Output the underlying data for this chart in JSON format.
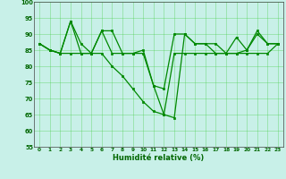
{
  "line1_x": [
    0,
    1,
    2,
    3,
    4,
    5,
    6,
    7,
    8,
    9,
    10,
    11,
    12,
    13,
    14,
    15,
    16,
    17,
    18,
    19,
    20,
    21,
    22,
    23
  ],
  "line1_y": [
    87,
    85,
    84,
    94,
    87,
    84,
    91,
    91,
    84,
    84,
    85,
    74,
    73,
    90,
    90,
    87,
    87,
    87,
    84,
    84,
    85,
    90,
    87,
    87
  ],
  "line2_x": [
    0,
    1,
    2,
    3,
    4,
    5,
    6,
    7,
    8,
    9,
    10,
    11,
    12,
    13,
    14,
    15,
    16,
    17,
    18,
    19,
    20,
    21,
    22,
    23
  ],
  "line2_y": [
    87,
    85,
    84,
    94,
    84,
    84,
    91,
    84,
    84,
    84,
    84,
    74,
    65,
    64,
    90,
    87,
    87,
    84,
    84,
    89,
    85,
    91,
    87,
    87
  ],
  "line3_x": [
    0,
    1,
    2,
    3,
    4,
    5,
    6,
    7,
    8,
    9,
    10,
    11,
    12,
    13,
    14,
    15,
    16,
    17,
    18,
    19,
    20,
    21,
    22,
    23
  ],
  "line3_y": [
    87,
    85,
    84,
    84,
    84,
    84,
    84,
    80,
    77,
    73,
    69,
    66,
    65,
    84,
    84,
    84,
    84,
    84,
    84,
    84,
    84,
    84,
    84,
    87
  ],
  "line_color": "#008800",
  "bg_color": "#c8f0e8",
  "grid_color": "#44cc44",
  "grid_color2": "#99dd99",
  "xlabel": "Humidité relative (%)",
  "ylim": [
    55,
    100
  ],
  "xlim": [
    -0.5,
    23.5
  ],
  "yticks": [
    55,
    60,
    65,
    70,
    75,
    80,
    85,
    90,
    95,
    100
  ],
  "xticks": [
    0,
    1,
    2,
    3,
    4,
    5,
    6,
    7,
    8,
    9,
    10,
    11,
    12,
    13,
    14,
    15,
    16,
    17,
    18,
    19,
    20,
    21,
    22,
    23
  ]
}
